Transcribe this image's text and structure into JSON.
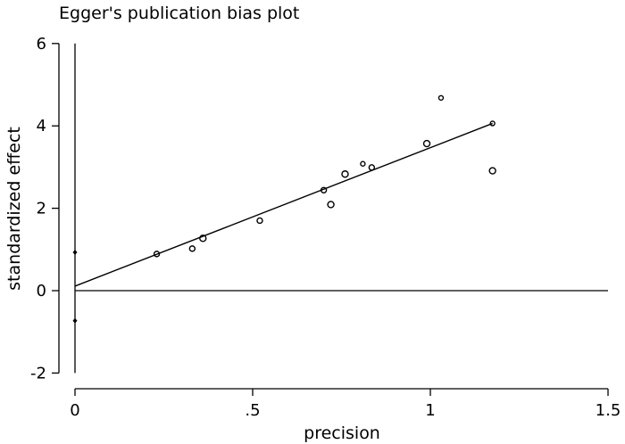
{
  "chart_data": {
    "type": "scatter",
    "title": "Egger's publication bias plot",
    "xlabel": "precision",
    "ylabel": "standardized effect",
    "xlim": [
      -0.03,
      1.52
    ],
    "ylim": [
      -2.2,
      6.4
    ],
    "xticks": [
      0,
      0.5,
      1,
      1.5
    ],
    "xtick_labels": [
      "0",
      ".5",
      "1",
      "1.5"
    ],
    "yticks": [
      -2,
      0,
      2,
      4,
      6
    ],
    "ytick_labels": [
      "-2",
      "0",
      "2",
      "4",
      "6"
    ],
    "grid": false,
    "points": [
      {
        "x": 0.23,
        "y": 0.89,
        "size": 3
      },
      {
        "x": 0.33,
        "y": 1.02,
        "size": 3
      },
      {
        "x": 0.36,
        "y": 1.27,
        "size": 3.5
      },
      {
        "x": 0.52,
        "y": 1.7,
        "size": 3
      },
      {
        "x": 0.7,
        "y": 2.44,
        "size": 3
      },
      {
        "x": 0.72,
        "y": 2.09,
        "size": 3.5
      },
      {
        "x": 0.76,
        "y": 2.83,
        "size": 3.5
      },
      {
        "x": 0.81,
        "y": 3.08,
        "size": 2.5
      },
      {
        "x": 0.835,
        "y": 2.99,
        "size": 3
      },
      {
        "x": 0.99,
        "y": 3.57,
        "size": 3.5
      },
      {
        "x": 1.03,
        "y": 4.68,
        "size": 2.5
      },
      {
        "x": 1.175,
        "y": 4.06,
        "size": 2.5
      },
      {
        "x": 1.175,
        "y": 2.91,
        "size": 3.5
      }
    ],
    "regression_line": {
      "x": [
        0,
        1.175
      ],
      "y": [
        0.11,
        4.06
      ]
    },
    "intercept_ci": {
      "x": 0,
      "lower": -0.73,
      "upper": 0.93
    },
    "reference_line_y": 0
  }
}
